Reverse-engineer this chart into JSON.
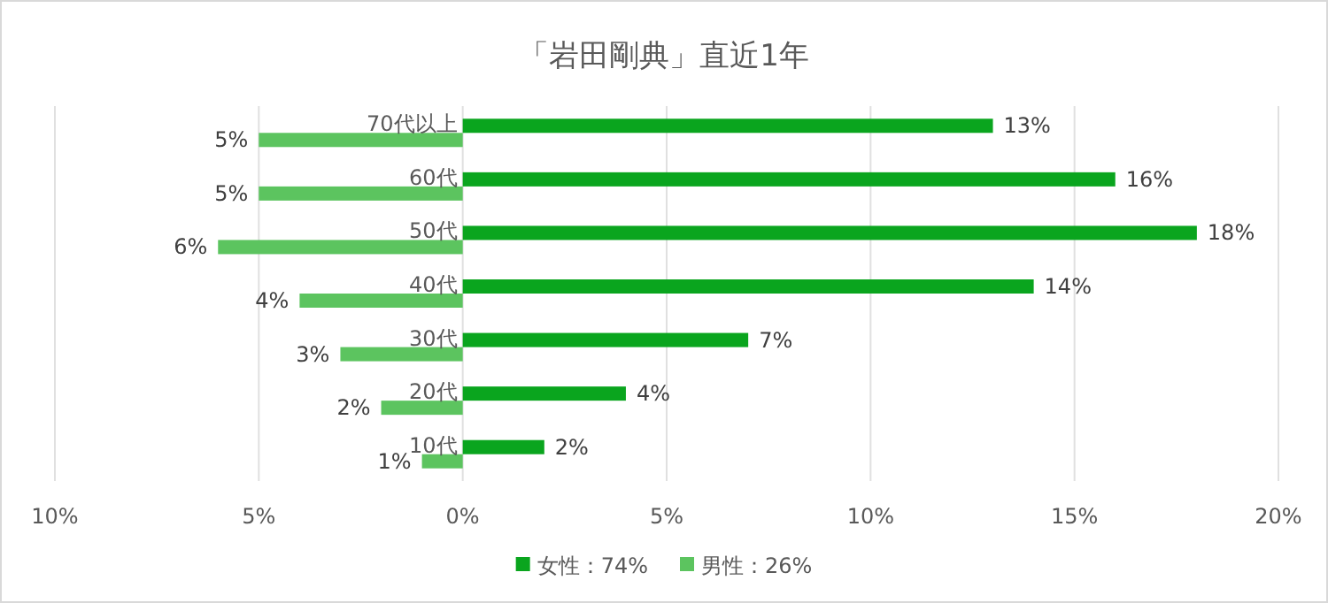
{
  "chart_data": {
    "type": "bar",
    "orientation": "horizontal",
    "title": "「岩田剛典」直近1年",
    "categories": [
      "70代以上",
      "60代",
      "50代",
      "40代",
      "30代",
      "20代",
      "10代"
    ],
    "series": [
      {
        "name": "女性：74%",
        "color": "#0aa51e",
        "values": [
          13,
          16,
          18,
          14,
          7,
          4,
          2
        ],
        "value_labels": [
          "13%",
          "16%",
          "18%",
          "14%",
          "7%",
          "4%",
          "2%"
        ]
      },
      {
        "name": "男性：26%",
        "color": "#5cc45f",
        "values": [
          -5,
          -5,
          -6,
          -4,
          -3,
          -2,
          -1
        ]
      }
    ],
    "annotations": [
      {
        "text": "5%",
        "x": -5,
        "y": "70代以上"
      },
      {
        "text": "5%",
        "x": -5,
        "y": "60代"
      },
      {
        "text": "6%",
        "x": -6,
        "y": "50代"
      },
      {
        "text": "4%",
        "x": -4,
        "y": "40代"
      },
      {
        "text": "3%",
        "x": -3,
        "y": "30代"
      },
      {
        "text": "2%",
        "x": -2,
        "y": "20代"
      },
      {
        "text": "1%",
        "x": -1,
        "y": "10代"
      }
    ],
    "xlim": [
      -10,
      20
    ],
    "xticks": [
      {
        "value": -10,
        "label": "10%"
      },
      {
        "value": -5,
        "label": "5%"
      },
      {
        "value": 0,
        "label": "0%"
      },
      {
        "value": 5,
        "label": "5%"
      },
      {
        "value": 10,
        "label": "10%"
      },
      {
        "value": 15,
        "label": "15%"
      },
      {
        "value": 20,
        "label": "20%"
      }
    ],
    "grid": "x",
    "legend": "bottom"
  }
}
